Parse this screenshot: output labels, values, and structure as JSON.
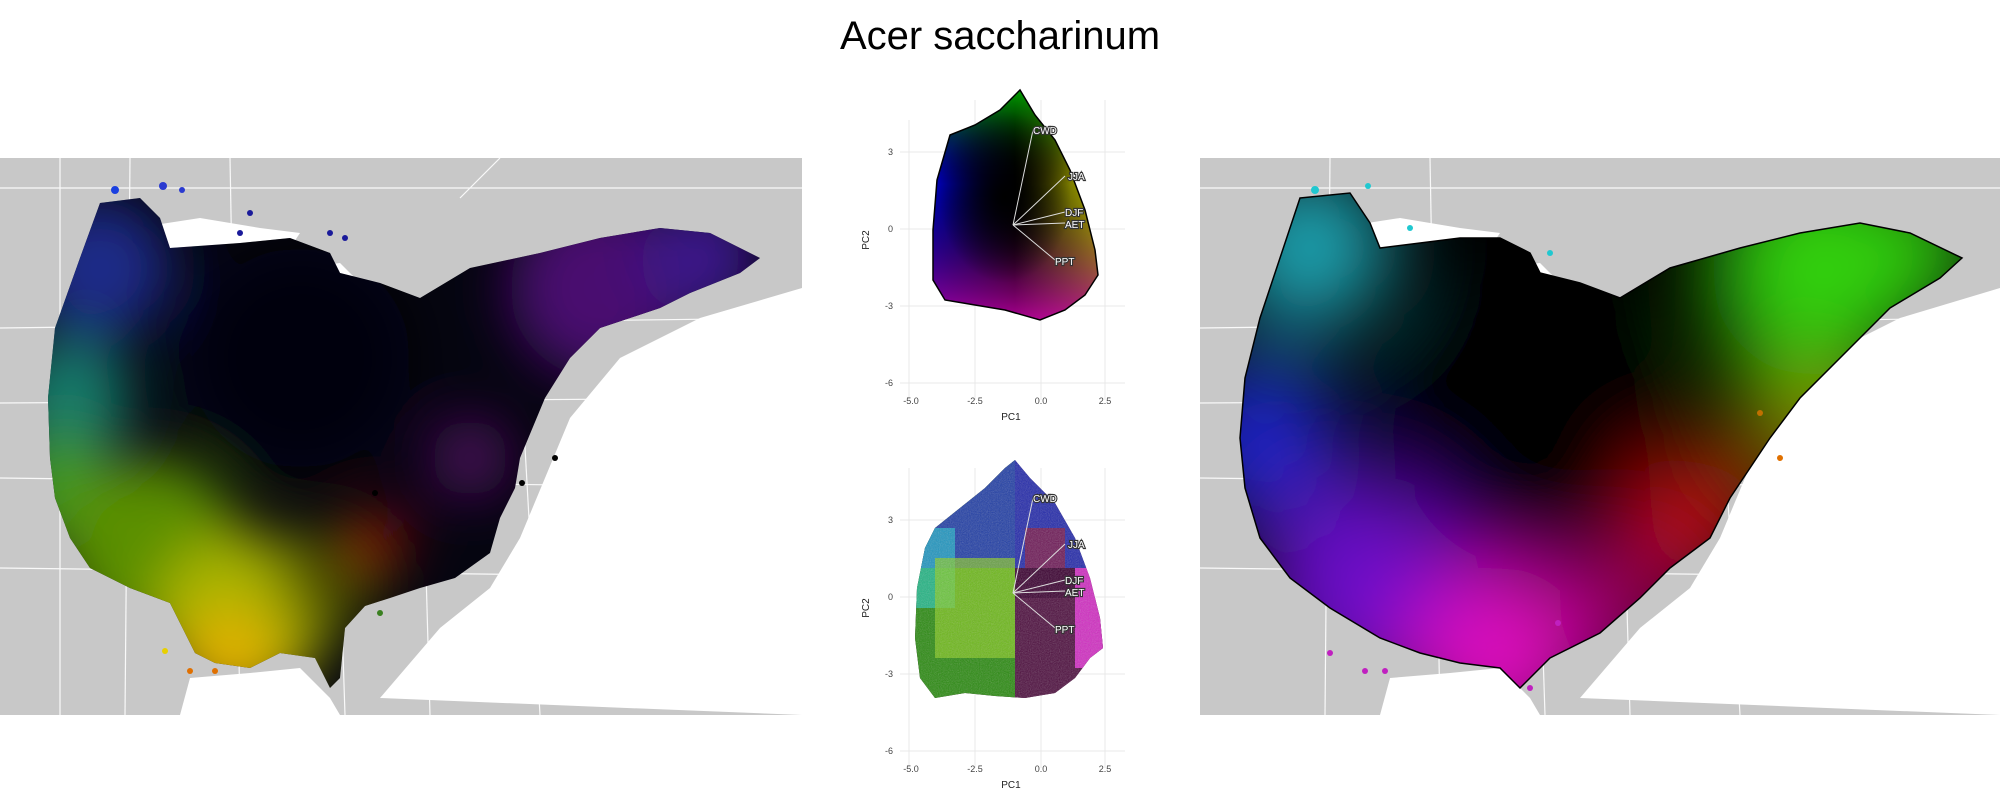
{
  "title": "Acer saccharinum",
  "pca": {
    "x_axis_label": "PC1",
    "y_axis_label": "PC2",
    "x_ticks": [
      "-5.0",
      "-2.5",
      "0.0",
      "2.5"
    ],
    "y_ticks": [
      "3",
      "0",
      "-3",
      "-6"
    ],
    "variables": [
      "CWD",
      "JJA",
      "DJF",
      "AET",
      "PPT"
    ]
  }
}
